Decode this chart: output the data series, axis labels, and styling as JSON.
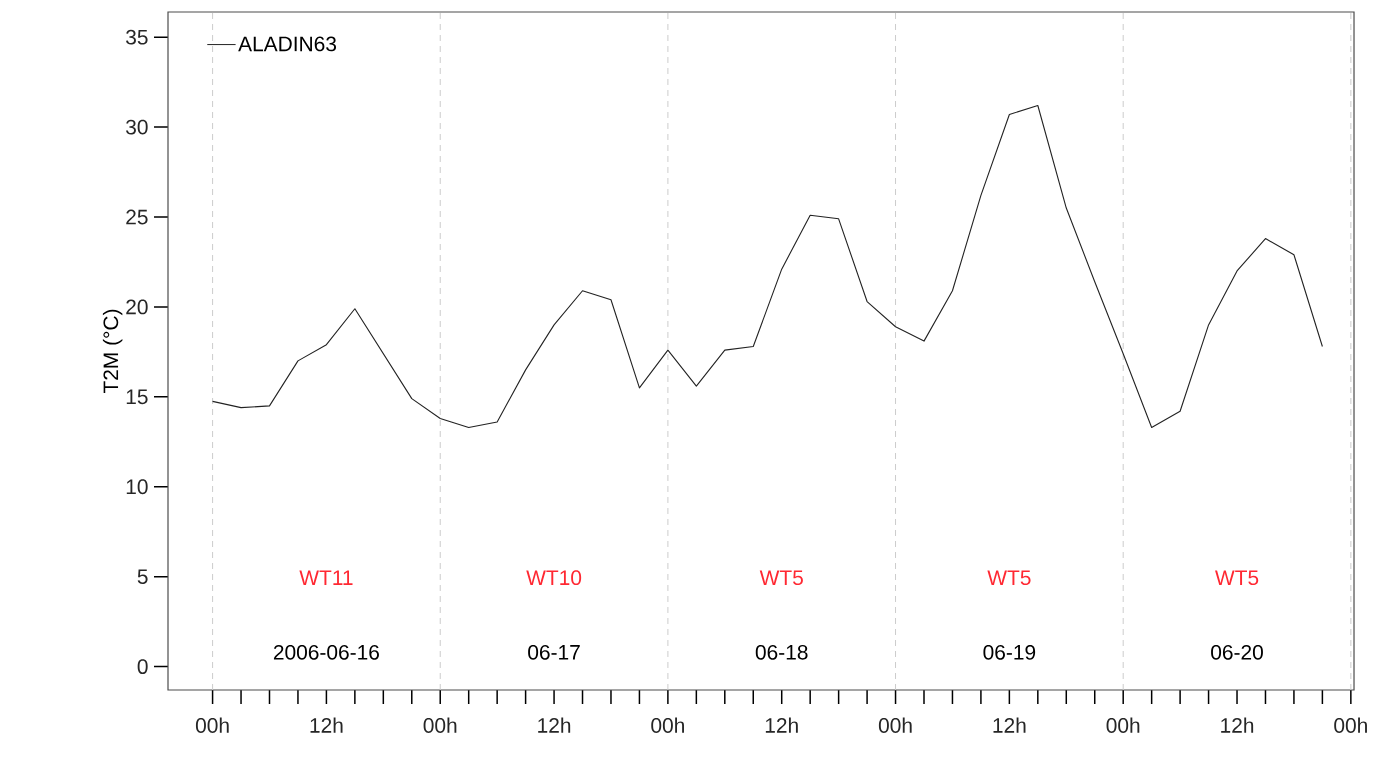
{
  "chart_data": {
    "type": "line",
    "ylabel": "T2M (°C)",
    "x": [
      "2006-06-16T00:00",
      "2006-06-16T03:00",
      "2006-06-16T06:00",
      "2006-06-16T09:00",
      "2006-06-16T12:00",
      "2006-06-16T15:00",
      "2006-06-16T18:00",
      "2006-06-16T21:00",
      "2006-06-17T00:00",
      "2006-06-17T03:00",
      "2006-06-17T06:00",
      "2006-06-17T09:00",
      "2006-06-17T12:00",
      "2006-06-17T15:00",
      "2006-06-17T18:00",
      "2006-06-17T21:00",
      "2006-06-18T00:00",
      "2006-06-18T03:00",
      "2006-06-18T06:00",
      "2006-06-18T09:00",
      "2006-06-18T12:00",
      "2006-06-18T15:00",
      "2006-06-18T18:00",
      "2006-06-18T21:00",
      "2006-06-19T00:00",
      "2006-06-19T03:00",
      "2006-06-19T06:00",
      "2006-06-19T09:00",
      "2006-06-19T12:00",
      "2006-06-19T15:00",
      "2006-06-19T18:00",
      "2006-06-19T21:00",
      "2006-06-20T00:00",
      "2006-06-20T03:00",
      "2006-06-20T06:00",
      "2006-06-20T09:00",
      "2006-06-20T12:00",
      "2006-06-20T15:00",
      "2006-06-20T18:00",
      "2006-06-20T21:00"
    ],
    "series": [
      {
        "name": "ALADIN63",
        "color": "#222222",
        "values": [
          14.75,
          14.4,
          14.5,
          17.0,
          17.9,
          19.9,
          17.4,
          14.9,
          13.8,
          13.3,
          13.6,
          16.5,
          19.0,
          20.9,
          20.4,
          15.5,
          17.6,
          15.6,
          17.6,
          17.8,
          22.1,
          25.1,
          24.9,
          20.3,
          18.9,
          18.1,
          20.9,
          26.2,
          30.7,
          31.2,
          25.5,
          21.4,
          17.4,
          13.3,
          14.2,
          19.0,
          22.0,
          23.8,
          22.9,
          17.8
        ]
      }
    ],
    "xlim": [
      "2006-06-15T19:18",
      "2006-06-21T00:20"
    ],
    "ylim": [
      -1.3,
      36.4
    ],
    "xticks": [
      {
        "value": "2006-06-16T00:00",
        "label": "00h"
      },
      {
        "value": "2006-06-16T03:00",
        "label": null
      },
      {
        "value": "2006-06-16T06:00",
        "label": null
      },
      {
        "value": "2006-06-16T09:00",
        "label": null
      },
      {
        "value": "2006-06-16T12:00",
        "label": "12h"
      },
      {
        "value": "2006-06-16T15:00",
        "label": null
      },
      {
        "value": "2006-06-16T18:00",
        "label": null
      },
      {
        "value": "2006-06-16T21:00",
        "label": null
      },
      {
        "value": "2006-06-17T00:00",
        "label": "00h"
      },
      {
        "value": "2006-06-17T03:00",
        "label": null
      },
      {
        "value": "2006-06-17T06:00",
        "label": null
      },
      {
        "value": "2006-06-17T09:00",
        "label": null
      },
      {
        "value": "2006-06-17T12:00",
        "label": "12h"
      },
      {
        "value": "2006-06-17T15:00",
        "label": null
      },
      {
        "value": "2006-06-17T18:00",
        "label": null
      },
      {
        "value": "2006-06-17T21:00",
        "label": null
      },
      {
        "value": "2006-06-18T00:00",
        "label": "00h"
      },
      {
        "value": "2006-06-18T03:00",
        "label": null
      },
      {
        "value": "2006-06-18T06:00",
        "label": null
      },
      {
        "value": "2006-06-18T09:00",
        "label": null
      },
      {
        "value": "2006-06-18T12:00",
        "label": "12h"
      },
      {
        "value": "2006-06-18T15:00",
        "label": null
      },
      {
        "value": "2006-06-18T18:00",
        "label": null
      },
      {
        "value": "2006-06-18T21:00",
        "label": null
      },
      {
        "value": "2006-06-19T00:00",
        "label": "00h"
      },
      {
        "value": "2006-06-19T03:00",
        "label": null
      },
      {
        "value": "2006-06-19T06:00",
        "label": null
      },
      {
        "value": "2006-06-19T09:00",
        "label": null
      },
      {
        "value": "2006-06-19T12:00",
        "label": "12h"
      },
      {
        "value": "2006-06-19T15:00",
        "label": null
      },
      {
        "value": "2006-06-19T18:00",
        "label": null
      },
      {
        "value": "2006-06-19T21:00",
        "label": null
      },
      {
        "value": "2006-06-20T00:00",
        "label": "00h"
      },
      {
        "value": "2006-06-20T03:00",
        "label": null
      },
      {
        "value": "2006-06-20T06:00",
        "label": null
      },
      {
        "value": "2006-06-20T09:00",
        "label": null
      },
      {
        "value": "2006-06-20T12:00",
        "label": "12h"
      },
      {
        "value": "2006-06-20T15:00",
        "label": null
      },
      {
        "value": "2006-06-20T18:00",
        "label": null
      },
      {
        "value": "2006-06-20T21:00",
        "label": null
      },
      {
        "value": "2006-06-21T00:00",
        "label": "00h"
      }
    ],
    "yticks": [
      0,
      5,
      10,
      15,
      20,
      25,
      30,
      35
    ],
    "ref_lines": [
      {
        "axis": "x",
        "value": "2006-06-16T00:00",
        "color": "#cccccc",
        "line_style": "dashed"
      },
      {
        "axis": "x",
        "value": "2006-06-17T00:00",
        "color": "#cccccc",
        "line_style": "dashed"
      },
      {
        "axis": "x",
        "value": "2006-06-18T00:00",
        "color": "#cccccc",
        "line_style": "dashed"
      },
      {
        "axis": "x",
        "value": "2006-06-19T00:00",
        "color": "#cccccc",
        "line_style": "dashed"
      },
      {
        "axis": "x",
        "value": "2006-06-20T00:00",
        "color": "#cccccc",
        "line_style": "dashed"
      },
      {
        "axis": "x",
        "value": "2006-06-21T00:00",
        "color": "#cccccc",
        "line_style": "dashed"
      }
    ],
    "annotations": [
      "WT11",
      "WT10",
      "WT5",
      "WT5",
      "WT5",
      "2006-06-16",
      "06-17",
      "06-18",
      "06-19",
      "06-20"
    ],
    "legend": "top left",
    "marker": "none",
    "line_style": "solid"
  }
}
